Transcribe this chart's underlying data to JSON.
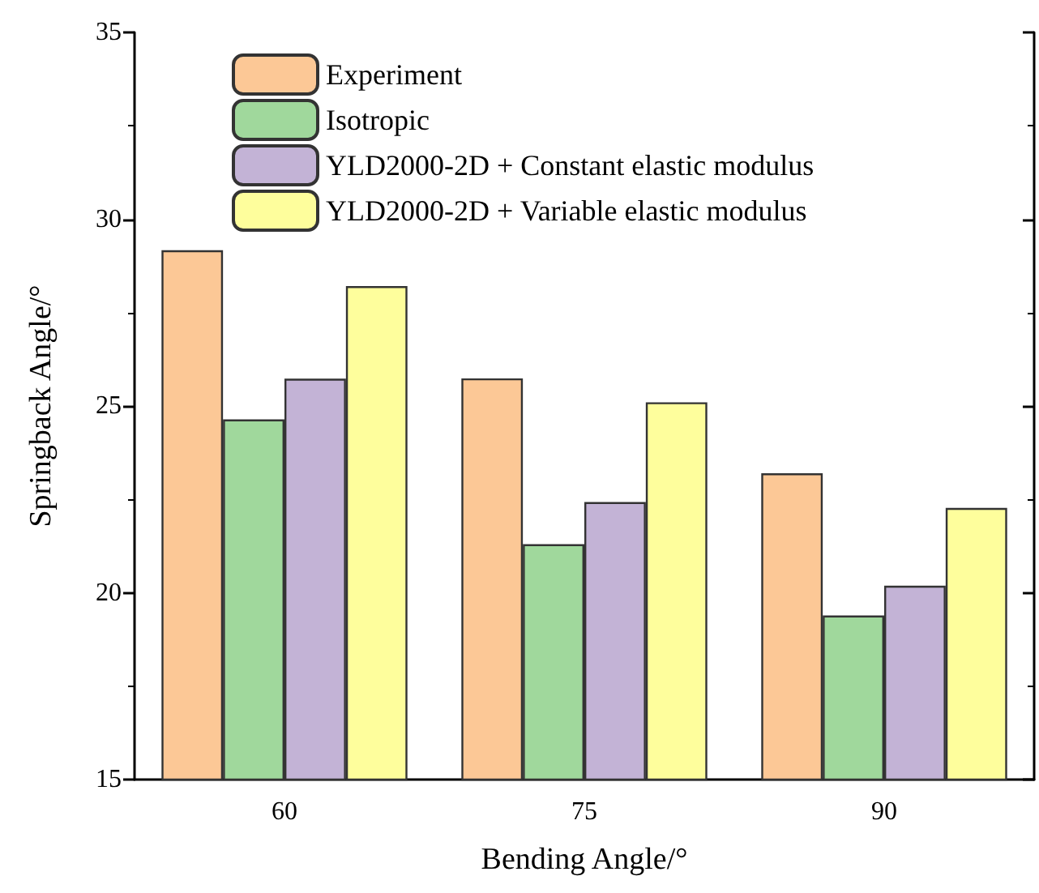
{
  "chart_data": {
    "type": "bar",
    "xlabel": "Bending Angle/°",
    "ylabel": "Springback Angle/°",
    "categories": [
      "60",
      "75",
      "90"
    ],
    "series": [
      {
        "name": "Experiment",
        "color": "#fcc896",
        "values": [
          29.17,
          25.74,
          23.2
        ]
      },
      {
        "name": "Isotropic",
        "color": "#a0d89c",
        "values": [
          24.64,
          21.3,
          19.39
        ]
      },
      {
        "name": "YLD2000-2D + Constant elastic modulus",
        "color": "#c3b3d6",
        "values": [
          25.73,
          22.43,
          20.19
        ]
      },
      {
        "name": "YLD2000-2D + Variable elastic modulus",
        "color": "#fefe9c",
        "values": [
          28.21,
          25.1,
          22.27
        ]
      }
    ],
    "ylim": [
      15,
      35
    ],
    "yticks": [
      15,
      20,
      25,
      30,
      35
    ],
    "grid": false,
    "legend": "top left"
  }
}
